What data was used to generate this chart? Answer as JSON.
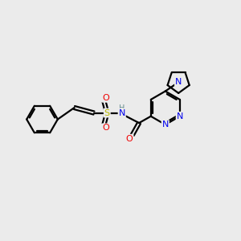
{
  "background_color": "#ebebeb",
  "bond_color": "#000000",
  "bond_width": 1.6,
  "atom_colors": {
    "N": "#0000ee",
    "O": "#ee0000",
    "S": "#bbbb00",
    "C": "#000000",
    "H": "#6a9090"
  },
  "font_size": 8.0
}
